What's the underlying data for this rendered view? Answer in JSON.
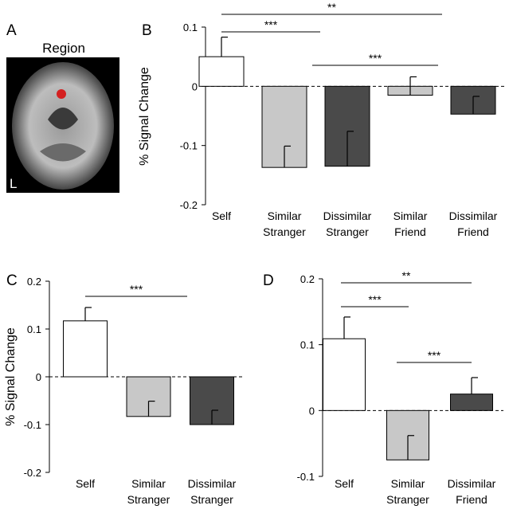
{
  "panel_a": {
    "letter": "A",
    "title": "Region",
    "side_label": "L"
  },
  "chart_data": [
    {
      "panel": "B",
      "type": "bar",
      "y_label": "% Signal Change",
      "categories": [
        "Self",
        "Similar Stranger",
        "Dissimilar Stranger",
        "Similar Friend",
        "Dissimilar Friend"
      ],
      "values": [
        0.05,
        -0.137,
        -0.135,
        -0.015,
        -0.047
      ],
      "errors": [
        0.033,
        0.036,
        0.059,
        0.031,
        0.03
      ],
      "colors": [
        "#ffffff",
        "#c8c8c8",
        "#4a4a4a",
        "#c8c8c8",
        "#4a4a4a"
      ],
      "ylim": [
        -0.2,
        0.1
      ],
      "yticks": [
        -0.2,
        -0.1,
        0,
        0.1
      ],
      "zero_line": "dashed",
      "annotations": [
        "***",
        "**",
        "***"
      ]
    },
    {
      "panel": "C",
      "type": "bar",
      "y_label": "% Signal Change",
      "categories": [
        "Self",
        "Similar Stranger",
        "Dissimilar Stranger"
      ],
      "values": [
        0.117,
        -0.083,
        -0.1
      ],
      "errors": [
        0.028,
        0.032,
        0.03
      ],
      "colors": [
        "#ffffff",
        "#c8c8c8",
        "#4a4a4a"
      ],
      "ylim": [
        -0.2,
        0.2
      ],
      "yticks": [
        -0.2,
        -0.1,
        0,
        0.1,
        0.2
      ],
      "zero_line": "dashed",
      "annotations": [
        "***"
      ]
    },
    {
      "panel": "D",
      "type": "bar",
      "categories": [
        "Self",
        "Similar Stranger",
        "Dissimilar Friend"
      ],
      "values": [
        0.109,
        -0.075,
        0.025
      ],
      "errors": [
        0.033,
        0.037,
        0.025
      ],
      "colors": [
        "#ffffff",
        "#c8c8c8",
        "#4a4a4a"
      ],
      "ylim": [
        -0.1,
        0.2
      ],
      "yticks": [
        -0.1,
        0,
        0.1,
        0.2
      ],
      "zero_line": "dashed",
      "annotations": [
        "**",
        "***",
        "***"
      ]
    }
  ]
}
